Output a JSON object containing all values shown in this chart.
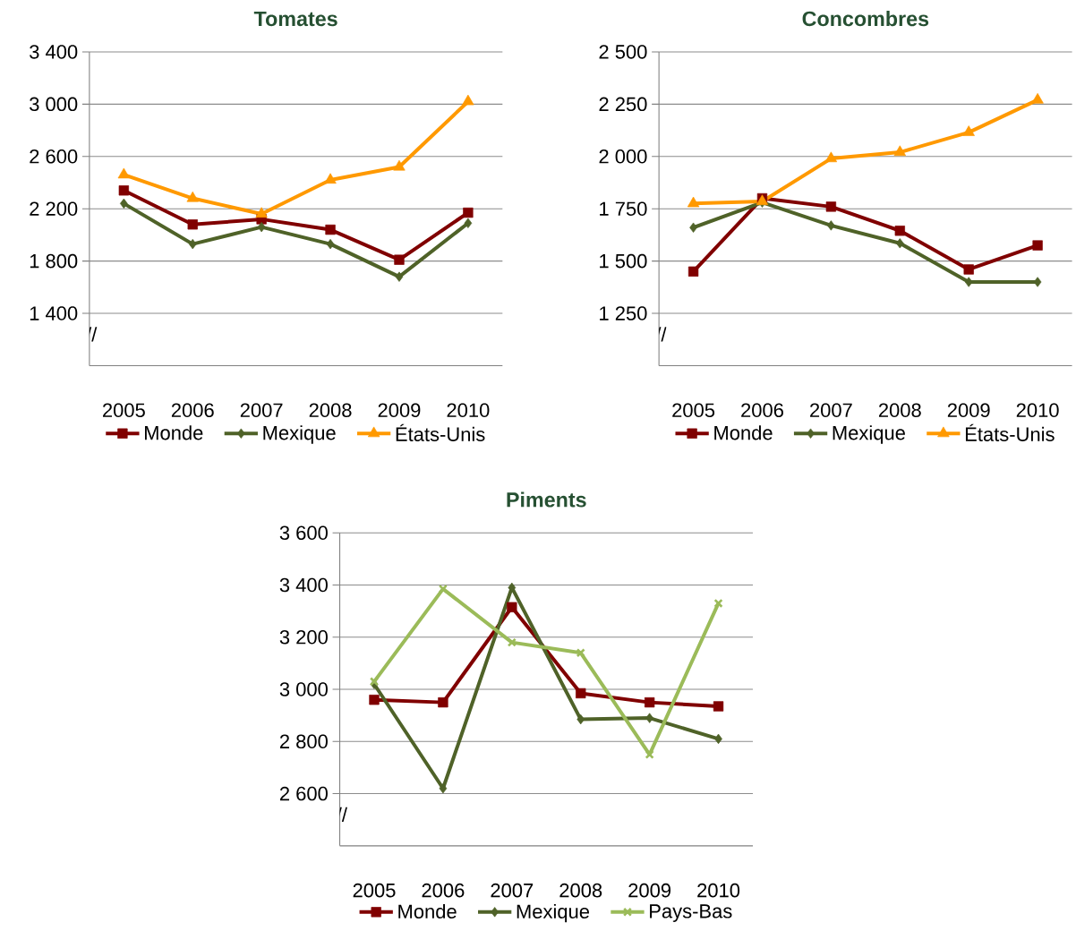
{
  "chart_data": [
    {
      "type": "line",
      "title": "Tomates",
      "categories": [
        "2005",
        "2006",
        "2007",
        "2008",
        "2009",
        "2010"
      ],
      "ylim": [
        1000,
        3400
      ],
      "yticks": [
        {
          "value": 1400,
          "label": "1 400"
        },
        {
          "value": 1800,
          "label": "1 800"
        },
        {
          "value": 2200,
          "label": "2 200"
        },
        {
          "value": 2600,
          "label": "2 600"
        },
        {
          "value": 3000,
          "label": "3 000"
        },
        {
          "value": 3400,
          "label": "3 400"
        }
      ],
      "grid": "y",
      "legend": "bottom",
      "annotations": [
        "//"
      ],
      "series": [
        {
          "name": "Monde",
          "color": "#800000",
          "marker": "square",
          "values": [
            2340,
            2080,
            2120,
            2040,
            1810,
            2170
          ]
        },
        {
          "name": "Mexique",
          "color": "#4f6228",
          "marker": "diamond",
          "values": [
            2240,
            1930,
            2060,
            1930,
            1680,
            2090
          ]
        },
        {
          "name": "États-Unis",
          "color": "#ff9900",
          "marker": "triangle",
          "values": [
            2460,
            2280,
            2160,
            2420,
            2520,
            3020
          ]
        }
      ]
    },
    {
      "type": "line",
      "title": "Concombres",
      "categories": [
        "2005",
        "2006",
        "2007",
        "2008",
        "2009",
        "2010"
      ],
      "ylim": [
        1000,
        2500
      ],
      "yticks": [
        {
          "value": 1250,
          "label": "1 250"
        },
        {
          "value": 1500,
          "label": "1 500"
        },
        {
          "value": 1750,
          "label": "1 750"
        },
        {
          "value": 2000,
          "label": "2 000"
        },
        {
          "value": 2250,
          "label": "2 250"
        },
        {
          "value": 2500,
          "label": "2 500"
        }
      ],
      "grid": "y",
      "legend": "bottom",
      "annotations": [
        "//"
      ],
      "series": [
        {
          "name": "Monde",
          "color": "#800000",
          "marker": "square",
          "values": [
            1450,
            1800,
            1760,
            1645,
            1460,
            1575
          ]
        },
        {
          "name": "Mexique",
          "color": "#4f6228",
          "marker": "diamond",
          "values": [
            1660,
            1780,
            1670,
            1585,
            1400,
            1400
          ]
        },
        {
          "name": "États-Unis",
          "color": "#ff9900",
          "marker": "triangle",
          "values": [
            1775,
            1785,
            1990,
            2020,
            2115,
            2270
          ]
        }
      ]
    },
    {
      "type": "line",
      "title": "Piments",
      "categories": [
        "2005",
        "2006",
        "2007",
        "2008",
        "2009",
        "2010"
      ],
      "ylim": [
        2400,
        3600
      ],
      "yticks": [
        {
          "value": 2600,
          "label": "2 600"
        },
        {
          "value": 2800,
          "label": "2 800"
        },
        {
          "value": 3000,
          "label": "3 000"
        },
        {
          "value": 3200,
          "label": "3 200"
        },
        {
          "value": 3400,
          "label": "3 400"
        },
        {
          "value": 3600,
          "label": "3 600"
        }
      ],
      "grid": "y",
      "legend": "bottom",
      "annotations": [
        "//"
      ],
      "series": [
        {
          "name": "Monde",
          "color": "#800000",
          "marker": "square",
          "values": [
            2960,
            2950,
            3315,
            2985,
            2950,
            2935
          ]
        },
        {
          "name": "Mexique",
          "color": "#4f6228",
          "marker": "diamond",
          "values": [
            3020,
            2620,
            3390,
            2885,
            2890,
            2810
          ]
        },
        {
          "name": "Pays-Bas",
          "color": "#9bbb59",
          "marker": "cross",
          "values": [
            3030,
            3385,
            3180,
            3140,
            2750,
            3330
          ]
        }
      ]
    }
  ]
}
